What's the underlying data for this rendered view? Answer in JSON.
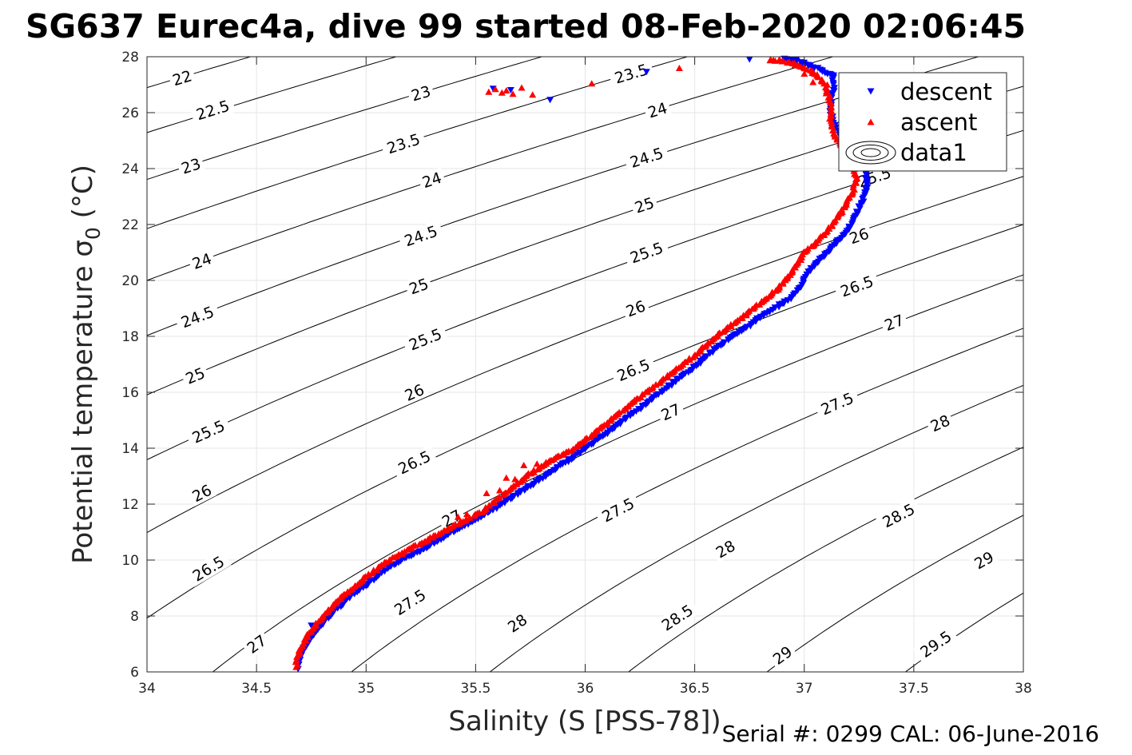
{
  "chart_data": {
    "type": "scatter",
    "title": "SG637 Eurec4a, dive 99 started 08-Feb-2020 02:06:45",
    "xlabel": "Salinity (S [PSS-78])",
    "ylabel": "Potential temperature σ",
    "ylabel_subscript": "0",
    "ylabel_unit": "(°C)",
    "footer": "Serial #: 0299 CAL: 06-June-2016",
    "xlim": [
      34,
      38
    ],
    "ylim": [
      6,
      28
    ],
    "x_ticks": [
      "34",
      "34.5",
      "35",
      "35.5",
      "36",
      "36.5",
      "37",
      "37.5",
      "38"
    ],
    "y_ticks": [
      "6",
      "8",
      "10",
      "12",
      "14",
      "16",
      "18",
      "20",
      "22",
      "24",
      "26",
      "28"
    ],
    "grid": true,
    "legend": {
      "placement": "top-right",
      "entries": [
        {
          "label": "descent",
          "marker": "triangle-down",
          "color": "#0000ff"
        },
        {
          "label": "ascent",
          "marker": "triangle-up",
          "color": "#ff0000"
        },
        {
          "label": "data1",
          "marker": "contour",
          "color": "#000000"
        }
      ]
    },
    "contours": {
      "levels": [
        "22",
        "22.5",
        "23",
        "23.5",
        "24",
        "24.5",
        "25",
        "25.5",
        "26",
        "26.5",
        "27",
        "27.5",
        "28",
        "28.5",
        "29",
        "29.5"
      ],
      "labels": [
        {
          "text": "22",
          "x": 34.16,
          "y": 27.25
        },
        {
          "text": "22.5",
          "x": 34.3,
          "y": 26.1
        },
        {
          "text": "23",
          "x": 34.2,
          "y": 24.1
        },
        {
          "text": "24",
          "x": 34.25,
          "y": 20.7
        },
        {
          "text": "24.5",
          "x": 34.23,
          "y": 18.7
        },
        {
          "text": "25",
          "x": 34.22,
          "y": 16.6
        },
        {
          "text": "25.5",
          "x": 34.28,
          "y": 14.6
        },
        {
          "text": "26",
          "x": 34.25,
          "y": 12.4
        },
        {
          "text": "26.5",
          "x": 34.28,
          "y": 9.7
        },
        {
          "text": "27",
          "x": 34.5,
          "y": 7.0
        },
        {
          "text": "23",
          "x": 35.25,
          "y": 26.7
        },
        {
          "text": "23.5",
          "x": 35.17,
          "y": 24.9
        },
        {
          "text": "24",
          "x": 35.3,
          "y": 23.6
        },
        {
          "text": "24.5",
          "x": 35.25,
          "y": 21.6
        },
        {
          "text": "25",
          "x": 35.24,
          "y": 19.8
        },
        {
          "text": "25.5",
          "x": 35.27,
          "y": 17.9
        },
        {
          "text": "26",
          "x": 35.22,
          "y": 16.0
        },
        {
          "text": "26.5",
          "x": 35.22,
          "y": 13.5
        },
        {
          "text": "27",
          "x": 35.39,
          "y": 11.5
        },
        {
          "text": "27.5",
          "x": 35.2,
          "y": 8.5
        },
        {
          "text": "28",
          "x": 35.69,
          "y": 7.75
        },
        {
          "text": "23.5",
          "x": 36.21,
          "y": 27.4
        },
        {
          "text": "24",
          "x": 36.33,
          "y": 26.1
        },
        {
          "text": "24.5",
          "x": 36.28,
          "y": 24.4
        },
        {
          "text": "25",
          "x": 36.27,
          "y": 22.7
        },
        {
          "text": "25.5",
          "x": 36.28,
          "y": 21.0
        },
        {
          "text": "26",
          "x": 36.23,
          "y": 19.0
        },
        {
          "text": "26.5",
          "x": 36.22,
          "y": 16.8
        },
        {
          "text": "27",
          "x": 36.39,
          "y": 15.3
        },
        {
          "text": "27.5",
          "x": 36.15,
          "y": 11.8
        },
        {
          "text": "28",
          "x": 36.64,
          "y": 10.4
        },
        {
          "text": "28.5",
          "x": 36.42,
          "y": 7.95
        },
        {
          "text": "29",
          "x": 36.9,
          "y": 6.6
        },
        {
          "text": "25.5",
          "x": 37.32,
          "y": 23.7
        },
        {
          "text": "26",
          "x": 37.25,
          "y": 21.6
        },
        {
          "text": "26.5",
          "x": 37.24,
          "y": 19.8
        },
        {
          "text": "27",
          "x": 37.41,
          "y": 18.5
        },
        {
          "text": "27.5",
          "x": 37.15,
          "y": 15.6
        },
        {
          "text": "28",
          "x": 37.62,
          "y": 14.9
        },
        {
          "text": "28.5",
          "x": 37.43,
          "y": 11.6
        },
        {
          "text": "29",
          "x": 37.82,
          "y": 10.0
        },
        {
          "text": "29.5",
          "x": 37.6,
          "y": 7.0
        }
      ]
    },
    "series": [
      {
        "name": "descent",
        "marker": "triangle-down",
        "color": "#0000ff",
        "profile": [
          [
            34.69,
            6.1
          ],
          [
            34.7,
            6.5
          ],
          [
            34.72,
            6.9
          ],
          [
            34.76,
            7.3
          ],
          [
            34.8,
            7.7
          ],
          [
            34.86,
            8.2
          ],
          [
            34.93,
            8.7
          ],
          [
            35.02,
            9.2
          ],
          [
            35.12,
            9.8
          ],
          [
            35.24,
            10.3
          ],
          [
            35.33,
            10.7
          ],
          [
            35.42,
            11.1
          ],
          [
            35.52,
            11.5
          ],
          [
            35.6,
            11.9
          ],
          [
            35.72,
            12.5
          ],
          [
            35.84,
            13.1
          ],
          [
            35.95,
            13.7
          ],
          [
            36.06,
            14.3
          ],
          [
            36.18,
            15.0
          ],
          [
            36.28,
            15.6
          ],
          [
            36.4,
            16.3
          ],
          [
            36.5,
            16.9
          ],
          [
            36.6,
            17.6
          ],
          [
            36.72,
            18.2
          ],
          [
            36.82,
            18.8
          ],
          [
            36.93,
            19.3
          ],
          [
            36.98,
            19.7
          ],
          [
            37.02,
            20.3
          ],
          [
            37.08,
            20.8
          ],
          [
            37.13,
            21.2
          ],
          [
            37.2,
            21.8
          ],
          [
            37.24,
            22.4
          ],
          [
            37.27,
            22.9
          ],
          [
            37.29,
            23.4
          ],
          [
            37.28,
            23.9
          ],
          [
            37.24,
            24.5
          ],
          [
            37.18,
            25.0
          ],
          [
            37.14,
            25.5
          ],
          [
            37.12,
            26.0
          ],
          [
            37.12,
            26.5
          ],
          [
            37.14,
            26.9
          ],
          [
            37.13,
            27.3
          ],
          [
            37.05,
            27.6
          ],
          [
            36.97,
            27.85
          ],
          [
            36.9,
            27.9
          ]
        ],
        "scatter": [
          [
            35.58,
            26.85
          ],
          [
            35.66,
            26.8
          ],
          [
            35.84,
            26.45
          ],
          [
            36.28,
            27.45
          ],
          [
            36.75,
            27.9
          ],
          [
            34.75,
            7.65
          ]
        ]
      },
      {
        "name": "ascent",
        "marker": "triangle-up",
        "color": "#ff0000",
        "profile": [
          [
            34.68,
            6.2
          ],
          [
            34.69,
            6.6
          ],
          [
            34.71,
            7.0
          ],
          [
            34.74,
            7.4
          ],
          [
            34.78,
            7.8
          ],
          [
            34.84,
            8.3
          ],
          [
            34.92,
            8.9
          ],
          [
            35.0,
            9.4
          ],
          [
            35.1,
            10.0
          ],
          [
            35.22,
            10.5
          ],
          [
            35.32,
            10.9
          ],
          [
            35.42,
            11.3
          ],
          [
            35.52,
            11.7
          ],
          [
            35.62,
            12.3
          ],
          [
            35.73,
            13.0
          ],
          [
            35.85,
            13.6
          ],
          [
            35.95,
            14.0
          ],
          [
            36.05,
            14.6
          ],
          [
            36.16,
            15.3
          ],
          [
            36.26,
            15.9
          ],
          [
            36.38,
            16.6
          ],
          [
            36.48,
            17.2
          ],
          [
            36.58,
            17.9
          ],
          [
            36.7,
            18.6
          ],
          [
            36.8,
            19.2
          ],
          [
            36.88,
            19.7
          ],
          [
            36.95,
            20.4
          ],
          [
            37.0,
            21.0
          ],
          [
            37.07,
            21.5
          ],
          [
            37.13,
            22.0
          ],
          [
            37.18,
            22.6
          ],
          [
            37.22,
            23.2
          ],
          [
            37.24,
            23.6
          ],
          [
            37.22,
            24.2
          ],
          [
            37.18,
            24.7
          ],
          [
            37.14,
            25.2
          ],
          [
            37.12,
            25.8
          ],
          [
            37.12,
            26.4
          ],
          [
            37.1,
            27.0
          ],
          [
            37.05,
            27.4
          ],
          [
            36.98,
            27.7
          ],
          [
            36.9,
            27.85
          ],
          [
            36.83,
            27.9
          ]
        ],
        "scatter": [
          [
            35.56,
            26.75
          ],
          [
            35.59,
            26.85
          ],
          [
            35.62,
            26.72
          ],
          [
            35.64,
            26.8
          ],
          [
            35.67,
            26.68
          ],
          [
            35.71,
            26.9
          ],
          [
            35.76,
            26.65
          ],
          [
            36.03,
            27.05
          ],
          [
            36.43,
            27.6
          ],
          [
            35.55,
            12.4
          ],
          [
            35.61,
            12.5
          ],
          [
            35.42,
            11.55
          ],
          [
            35.46,
            11.65
          ],
          [
            35.72,
            13.4
          ],
          [
            35.78,
            13.45
          ],
          [
            35.68,
            12.9
          ],
          [
            35.64,
            12.95
          ],
          [
            37.04,
            27.1
          ],
          [
            37.0,
            27.4
          ],
          [
            37.1,
            26.7
          ]
        ]
      }
    ]
  }
}
